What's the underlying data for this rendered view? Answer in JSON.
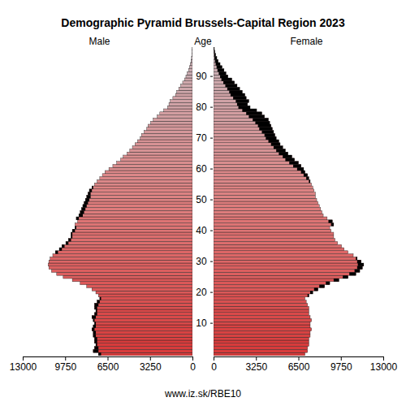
{
  "chart_data": {
    "type": "bar",
    "orientation": "horizontal",
    "title": "Demographic Pyramid Brussels-Capital Region 2023",
    "y_label": "Age",
    "annotations": [
      "www.iz.sk/RBE10"
    ],
    "categories": [
      null,
      null,
      null,
      null,
      null,
      null,
      null,
      null,
      null,
      null,
      "10",
      null,
      null,
      null,
      null,
      null,
      null,
      null,
      null,
      null,
      "20",
      null,
      null,
      null,
      null,
      null,
      null,
      null,
      null,
      null,
      "30",
      null,
      null,
      null,
      null,
      null,
      null,
      null,
      null,
      null,
      "40",
      null,
      null,
      null,
      null,
      null,
      null,
      null,
      null,
      null,
      "50",
      null,
      null,
      null,
      null,
      null,
      null,
      null,
      null,
      null,
      "60",
      null,
      null,
      null,
      null,
      null,
      null,
      null,
      null,
      null,
      "70",
      null,
      null,
      null,
      null,
      null,
      null,
      null,
      null,
      null,
      "80",
      null,
      null,
      null,
      null,
      null,
      null,
      null,
      null,
      null,
      "90",
      null,
      null,
      null,
      null,
      null,
      null,
      null,
      null,
      null
    ],
    "xlim": [
      0,
      13000
    ],
    "xticks": [
      0,
      3250,
      6500,
      9750,
      13000
    ],
    "colors": [
      "#d83b3b",
      "#d83b3b",
      "#d83b3b",
      "#d83b3b",
      "#d83b3b",
      "#d84242",
      "#d84242",
      "#d84242",
      "#d84242",
      "#d84242",
      "#d94949",
      "#d94949",
      "#d94949",
      "#d94949",
      "#d94949",
      "#d95050",
      "#d95050",
      "#d95050",
      "#d95050",
      "#d95050",
      "#db5858",
      "#db5858",
      "#db5858",
      "#db5858",
      "#db5858",
      "#db5f5f",
      "#db5f5f",
      "#db5f5f",
      "#db5f5f",
      "#db5f5f",
      "#dc6666",
      "#dc6666",
      "#dc6666",
      "#dc6666",
      "#dc6666",
      "#dc6d6d",
      "#dc6d6d",
      "#dc6d6d",
      "#dc6d6d",
      "#dc6d6d",
      "#dd7474",
      "#dd7474",
      "#dd7474",
      "#dd7474",
      "#dd7474",
      "#de7c7c",
      "#de7c7c",
      "#de7c7c",
      "#de7c7c",
      "#de7c7c",
      "#dd8282",
      "#dd8282",
      "#dd8282",
      "#dd8282",
      "#dd8282",
      "#db8788",
      "#db8788",
      "#db8788",
      "#db8788",
      "#db8788",
      "#d98d8e",
      "#d98d8e",
      "#d98d8e",
      "#d98d8e",
      "#d98d8e",
      "#d69294",
      "#d69294",
      "#d69294",
      "#d69294",
      "#d69294",
      "#d4979a",
      "#d4979a",
      "#d4979a",
      "#d4979a",
      "#d4979a",
      "#d29da0",
      "#d29da0",
      "#d29da0",
      "#d29da0",
      "#d29da0",
      "#d0a2a6",
      "#d0a2a6",
      "#d0a2a6",
      "#d0a2a6",
      "#d0a2a6",
      "#cea7ab",
      "#cea7ab",
      "#cea7ab",
      "#cea7ab",
      "#cea7ab",
      "#cbacb1",
      "#cbacb1",
      "#cbacb1",
      "#cbacb1",
      "#cbacb1",
      "#c9b1b7",
      "#c9b1b7",
      "#c9b1b7",
      "#c9b1b7",
      "#c9b1b7"
    ],
    "series": [
      {
        "name": "Male",
        "values": [
          7200,
          7600,
          7500,
          7400,
          7500,
          7500,
          7600,
          7600,
          7700,
          7600,
          7500,
          7600,
          7700,
          7500,
          7400,
          7500,
          7500,
          7300,
          7100,
          7200,
          7400,
          7700,
          8100,
          8600,
          9200,
          9900,
          10400,
          10800,
          11000,
          11050,
          11000,
          10900,
          10700,
          10500,
          10200,
          10000,
          9700,
          9500,
          9300,
          9300,
          9200,
          9000,
          9000,
          8800,
          8900,
          8700,
          8600,
          8500,
          8400,
          8300,
          8200,
          8100,
          8000,
          7900,
          7700,
          7500,
          7300,
          7100,
          6900,
          6700,
          6400,
          6100,
          5800,
          5500,
          5300,
          5000,
          4800,
          4600,
          4400,
          4200,
          4000,
          3900,
          3700,
          3500,
          3400,
          3200,
          3000,
          2700,
          2500,
          2200,
          1900,
          1800,
          1700,
          1500,
          1300,
          1200,
          1050,
          900,
          750,
          600,
          500,
          400,
          300,
          230,
          160,
          110,
          70,
          45,
          25,
          15
        ]
      },
      {
        "name": "Female",
        "values": [
          7000,
          7200,
          7200,
          7300,
          7300,
          7300,
          7400,
          7400,
          7500,
          7400,
          7400,
          7500,
          7400,
          7300,
          7300,
          7300,
          7200,
          7100,
          7000,
          7300,
          7600,
          8000,
          8500,
          8900,
          9600,
          10300,
          10900,
          11200,
          11400,
          11500,
          11300,
          11000,
          10700,
          10300,
          10000,
          9800,
          9500,
          9300,
          9200,
          9200,
          9000,
          8900,
          9200,
          9100,
          8700,
          8400,
          8300,
          8200,
          8100,
          8000,
          7900,
          7800,
          7800,
          7700,
          7600,
          7500,
          7400,
          7300,
          7200,
          7000,
          6900,
          6700,
          6500,
          6200,
          6000,
          5700,
          5500,
          5300,
          5100,
          5000,
          4800,
          4700,
          4600,
          4500,
          4400,
          4300,
          4200,
          3900,
          3700,
          3300,
          2800,
          2600,
          2700,
          2500,
          2400,
          2200,
          2000,
          1800,
          1600,
          1400,
          1100,
          950,
          800,
          650,
          500,
          350,
          250,
          160,
          100,
          60
        ]
      }
    ]
  }
}
